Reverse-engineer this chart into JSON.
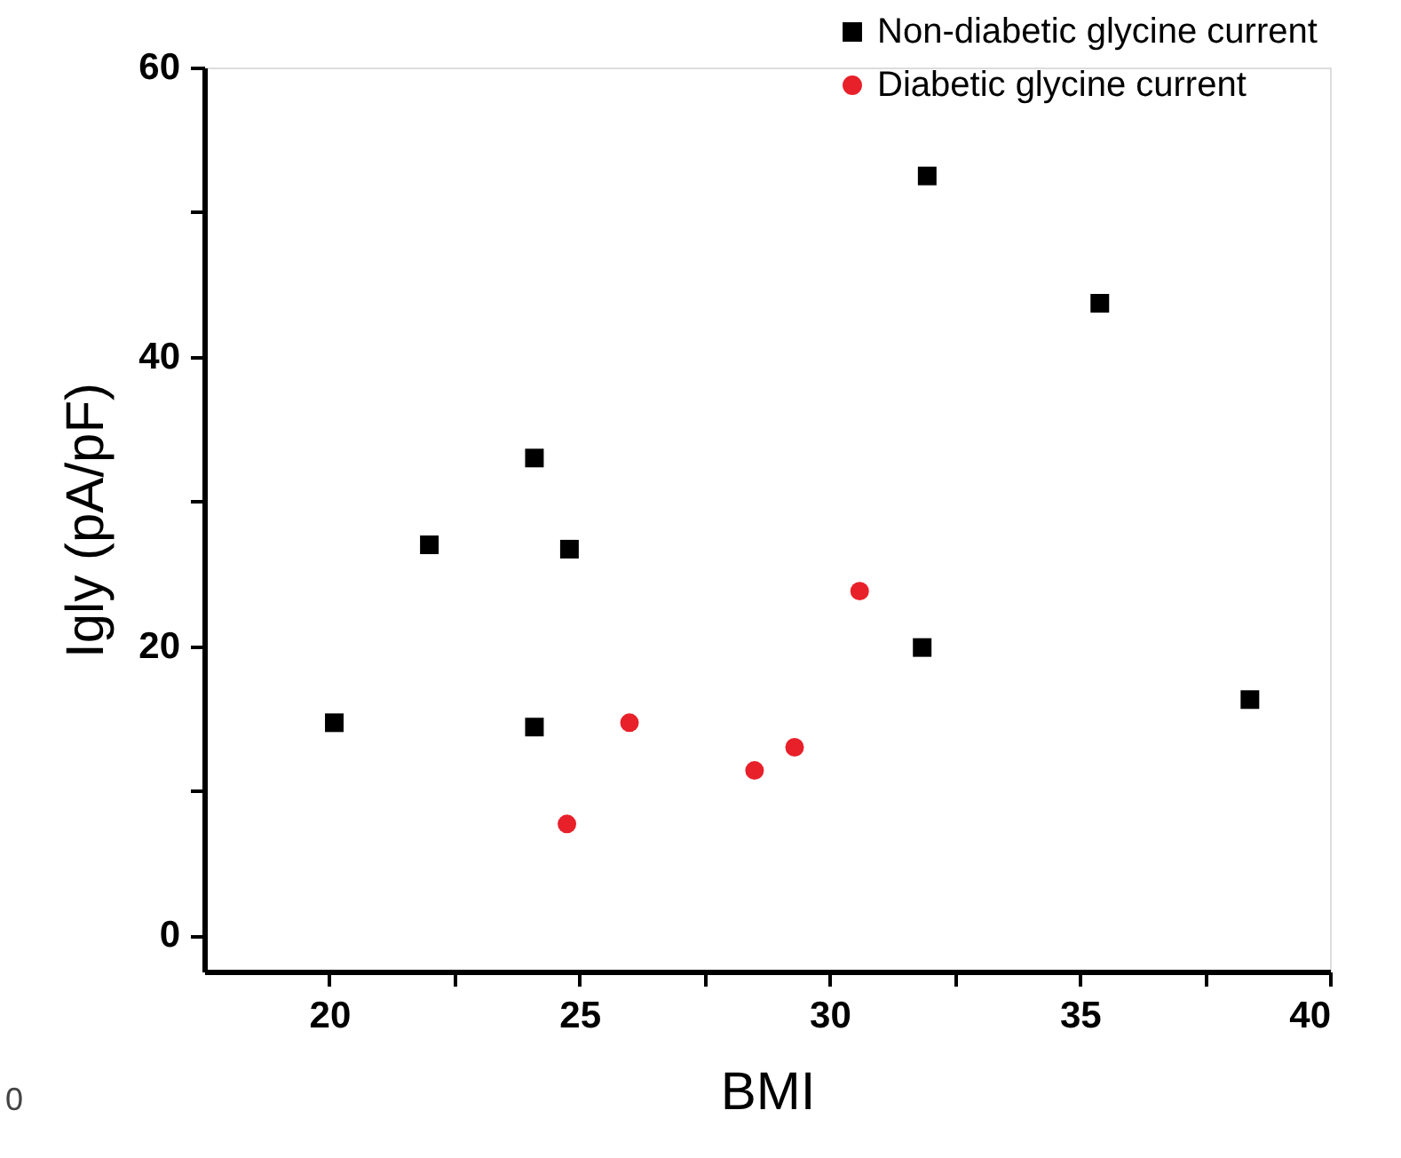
{
  "chart_data": {
    "type": "scatter",
    "xlabel": "BMI",
    "ylabel": "Igly (pA/pF)",
    "xlim": [
      17.5,
      40
    ],
    "ylim": [
      -2.5,
      60
    ],
    "xticks": [
      20,
      {
        "value": 22.5,
        "label": null
      },
      25,
      {
        "value": 27.5,
        "label": null
      },
      30,
      {
        "value": 32.5,
        "label": null
      },
      35,
      {
        "value": 37.5,
        "label": null
      },
      40
    ],
    "yticks": [
      0,
      {
        "value": 10,
        "label": null
      },
      20,
      {
        "value": 30,
        "label": null
      },
      40,
      {
        "value": 50,
        "label": null
      },
      60
    ],
    "grid": false,
    "legend": "top right",
    "annotations": [
      "0"
    ],
    "series": [
      {
        "name": "Non-diabetic glycine current",
        "color": "#000000",
        "marker": "square",
        "x": [
          20.1,
          22.0,
          24.1,
          24.1,
          24.8,
          31.95,
          31.85,
          35.4,
          38.4
        ],
        "values": [
          14.7,
          27.0,
          33.0,
          14.4,
          26.7,
          52.5,
          19.9,
          43.7,
          16.3
        ]
      },
      {
        "name": "Diabetic glycine current",
        "color": "#e8202a",
        "marker": "circle",
        "x": [
          24.75,
          26.0,
          28.5,
          29.3,
          30.6
        ],
        "values": [
          7.7,
          14.7,
          11.4,
          13.0,
          23.8
        ]
      }
    ]
  }
}
